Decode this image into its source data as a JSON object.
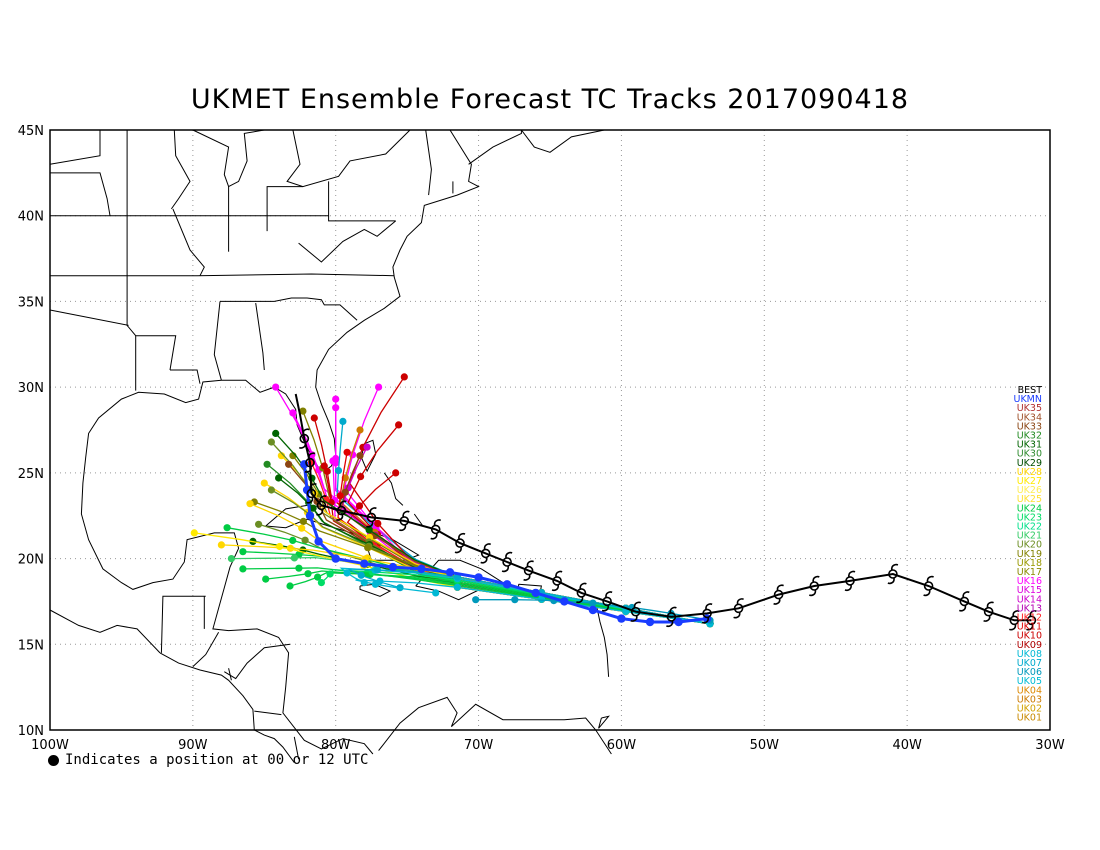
{
  "title": "UKMET Ensemble Forecast TC Tracks 2017090418",
  "footnote": "Indicates a position at 00 or 12 UTC",
  "map": {
    "lon_range": [
      -100,
      -30
    ],
    "lat_range": [
      10,
      45
    ],
    "x_ticks": [
      {
        "lon": -100,
        "label": "100W"
      },
      {
        "lon": -90,
        "label": "90W"
      },
      {
        "lon": -80,
        "label": "80W"
      },
      {
        "lon": -70,
        "label": "70W"
      },
      {
        "lon": -60,
        "label": "60W"
      },
      {
        "lon": -50,
        "label": "50W"
      },
      {
        "lon": -40,
        "label": "40W"
      },
      {
        "lon": -30,
        "label": "30W"
      }
    ],
    "y_ticks": [
      {
        "lat": 10,
        "label": "10N"
      },
      {
        "lat": 15,
        "label": "15N"
      },
      {
        "lat": 20,
        "label": "20N"
      },
      {
        "lat": 25,
        "label": "25N"
      },
      {
        "lat": 30,
        "label": "30N"
      },
      {
        "lat": 35,
        "label": "35N"
      },
      {
        "lat": 40,
        "label": "40N"
      },
      {
        "lat": 45,
        "label": "45N"
      }
    ],
    "grid": "dotted"
  },
  "legend": [
    {
      "label": "BEST",
      "color": "#000000"
    },
    {
      "label": "UKMN",
      "color": "#1a3cff"
    },
    {
      "label": "UK35",
      "color": "#b03030"
    },
    {
      "label": "UK34",
      "color": "#a0522d"
    },
    {
      "label": "UK33",
      "color": "#8b4513"
    },
    {
      "label": "UK32",
      "color": "#228b22"
    },
    {
      "label": "UK31",
      "color": "#006400"
    },
    {
      "label": "UK30",
      "color": "#2e8b2e"
    },
    {
      "label": "UK29",
      "color": "#004d00"
    },
    {
      "label": "UK28",
      "color": "#ffd700"
    },
    {
      "label": "UK27",
      "color": "#ffea00"
    },
    {
      "label": "UK26",
      "color": "#ffee55"
    },
    {
      "label": "UK25",
      "color": "#ffe135"
    },
    {
      "label": "UK24",
      "color": "#00cc44"
    },
    {
      "label": "UK23",
      "color": "#00dd66"
    },
    {
      "label": "UK22",
      "color": "#00e08a"
    },
    {
      "label": "UK21",
      "color": "#33cc66"
    },
    {
      "label": "UK20",
      "color": "#6b8e23"
    },
    {
      "label": "UK19",
      "color": "#808000"
    },
    {
      "label": "UK18",
      "color": "#999900"
    },
    {
      "label": "UK17",
      "color": "#8a8a00"
    },
    {
      "label": "UK16",
      "color": "#ff00ff"
    },
    {
      "label": "UK15",
      "color": "#dd00dd"
    },
    {
      "label": "UK14",
      "color": "#cc00cc"
    },
    {
      "label": "UK13",
      "color": "#b300b3"
    },
    {
      "label": "UK12",
      "color": "#ff2020"
    },
    {
      "label": "UK11",
      "color": "#e00000"
    },
    {
      "label": "UK10",
      "color": "#cc0000"
    },
    {
      "label": "UK09",
      "color": "#b00000"
    },
    {
      "label": "UK08",
      "color": "#00b8d4"
    },
    {
      "label": "UK07",
      "color": "#00aacc"
    },
    {
      "label": "UK06",
      "color": "#0099bb"
    },
    {
      "label": "UK05",
      "color": "#00bcd4"
    },
    {
      "label": "UK04",
      "color": "#dd8800"
    },
    {
      "label": "UK03",
      "color": "#cc7a00"
    },
    {
      "label": "UK02",
      "color": "#d2a000"
    },
    {
      "label": "UK01",
      "color": "#c88a00"
    }
  ],
  "best_track": [
    [
      -31.3,
      16.4
    ],
    [
      -32.5,
      16.4
    ],
    [
      -34.3,
      16.9
    ],
    [
      -36.0,
      17.5
    ],
    [
      -38.5,
      18.4
    ],
    [
      -41.0,
      19.1
    ],
    [
      -44.0,
      18.7
    ],
    [
      -46.5,
      18.4
    ],
    [
      -49.0,
      17.9
    ],
    [
      -51.8,
      17.1
    ],
    [
      -54.0,
      16.8
    ],
    [
      -56.5,
      16.6
    ],
    [
      -59.0,
      16.9
    ],
    [
      -61.0,
      17.5
    ],
    [
      -62.8,
      18.0
    ],
    [
      -64.5,
      18.7
    ],
    [
      -66.5,
      19.3
    ],
    [
      -68.0,
      19.8
    ],
    [
      -69.5,
      20.3
    ],
    [
      -71.3,
      20.9
    ],
    [
      -73.0,
      21.7
    ],
    [
      -75.2,
      22.2
    ],
    [
      -77.5,
      22.4
    ],
    [
      -79.6,
      22.8
    ],
    [
      -81.0,
      23.1
    ],
    [
      -81.7,
      23.8
    ],
    [
      -81.8,
      25.6
    ],
    [
      -82.2,
      27.0
    ],
    [
      -82.5,
      28.4
    ],
    [
      -82.8,
      29.6
    ]
  ],
  "ukmn_track": [
    [
      -54.0,
      16.5
    ],
    [
      -56.0,
      16.3
    ],
    [
      -58.0,
      16.3
    ],
    [
      -60.0,
      16.5
    ],
    [
      -62.0,
      17.0
    ],
    [
      -64.0,
      17.5
    ],
    [
      -66.0,
      18.0
    ],
    [
      -68.0,
      18.5
    ],
    [
      -70.0,
      18.9
    ],
    [
      -72.0,
      19.2
    ],
    [
      -74.0,
      19.4
    ],
    [
      -76.0,
      19.5
    ],
    [
      -78.0,
      19.7
    ],
    [
      -80.0,
      20.0
    ],
    [
      -81.2,
      21.0
    ],
    [
      -81.8,
      22.5
    ],
    [
      -82.0,
      24.0
    ],
    [
      -82.2,
      25.5
    ]
  ],
  "ensemble_endpoints": [
    [
      -84.2,
      30.0,
      "#ff00ff"
    ],
    [
      -83.0,
      28.5,
      "#ff00ff"
    ],
    [
      -82.3,
      28.6,
      "#808000"
    ],
    [
      -81.5,
      28.2,
      "#cc0000"
    ],
    [
      -80.0,
      29.3,
      "#ff00ff"
    ],
    [
      -80.0,
      28.8,
      "#ff00ff"
    ],
    [
      -79.5,
      28.0,
      "#00aacc"
    ],
    [
      -77.0,
      30.0,
      "#ff00ff"
    ],
    [
      -75.2,
      30.6,
      "#cc0000"
    ],
    [
      -75.6,
      27.8,
      "#cc0000"
    ],
    [
      -75.8,
      25.0,
      "#cc0000"
    ],
    [
      -78.3,
      27.5,
      "#cc7a00"
    ],
    [
      -77.8,
      26.5,
      "#cc00cc"
    ],
    [
      -78.3,
      26.0,
      "#8b4513"
    ],
    [
      -79.2,
      26.2,
      "#e00000"
    ],
    [
      -80.2,
      25.7,
      "#ff00ff"
    ],
    [
      -80.8,
      25.4,
      "#cc0000"
    ],
    [
      -81.7,
      25.6,
      "#ff2020"
    ],
    [
      -83.0,
      26.0,
      "#808000"
    ],
    [
      -83.8,
      26.0,
      "#ffd700"
    ],
    [
      -84.2,
      27.3,
      "#006400"
    ],
    [
      -84.5,
      26.8,
      "#6b8e23"
    ],
    [
      -84.8,
      25.5,
      "#228b22"
    ],
    [
      -83.3,
      25.5,
      "#8b4513"
    ],
    [
      -85.0,
      24.4,
      "#ffd700"
    ],
    [
      -84.0,
      24.7,
      "#006400"
    ],
    [
      -84.5,
      24.0,
      "#6b8e23"
    ],
    [
      -85.7,
      23.3,
      "#808000"
    ],
    [
      -86.0,
      23.2,
      "#ffd700"
    ],
    [
      -85.4,
      22.0,
      "#6b8e23"
    ],
    [
      -85.8,
      21.0,
      "#006400"
    ],
    [
      -87.6,
      21.8,
      "#00cc44"
    ],
    [
      -86.5,
      20.4,
      "#00cc44"
    ],
    [
      -87.3,
      20.0,
      "#33cc66"
    ],
    [
      -88.0,
      20.8,
      "#ffd700"
    ],
    [
      -89.9,
      21.5,
      "#ffea00"
    ],
    [
      -86.5,
      19.4,
      "#00cc44"
    ],
    [
      -84.9,
      18.8,
      "#00cc44"
    ],
    [
      -83.2,
      18.4,
      "#00cc44"
    ],
    [
      -81.0,
      18.6,
      "#00dd66"
    ],
    [
      -78.0,
      18.6,
      "#00bcd4"
    ],
    [
      -75.5,
      18.3,
      "#00aacc"
    ],
    [
      -73.0,
      18.0,
      "#00b8d4"
    ],
    [
      -70.2,
      17.6,
      "#0099bb"
    ]
  ]
}
